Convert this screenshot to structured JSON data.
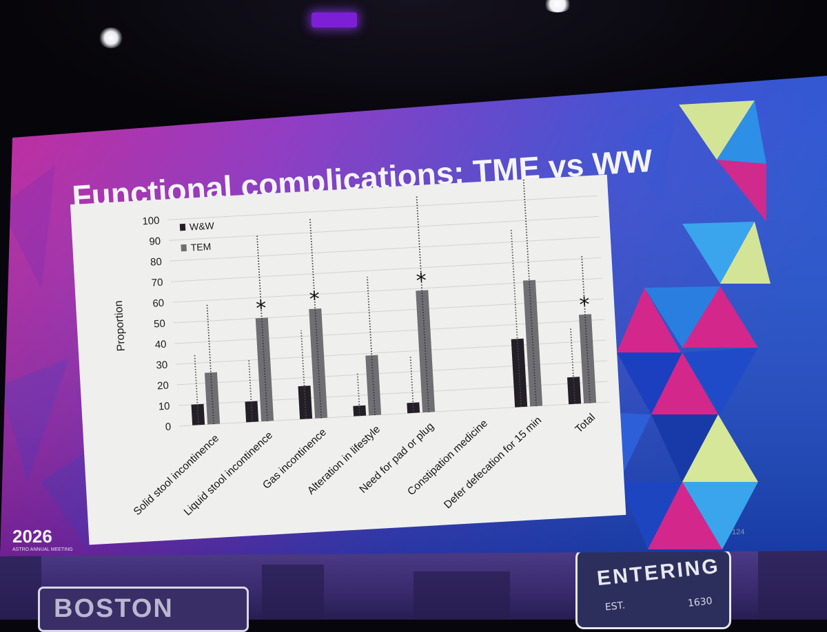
{
  "slide": {
    "title": "Functional complications: TME vs WW",
    "page_number": "124",
    "logo_year": "2026",
    "logo_subtitle": "ASTRO ANNUAL MEETING"
  },
  "venue": {
    "sign_left": "BOSTON",
    "sign_right": "ENTERING",
    "sign_right_est": "EST.",
    "sign_right_year": "1630"
  },
  "colors": {
    "ww_bar": "#231f26",
    "tem_bar": "#6f6f73",
    "plot_bg": "#efefed",
    "slide_magenta": "#d3268f",
    "slide_blue": "#2447c8"
  },
  "chart_data": {
    "type": "bar",
    "ylabel": "Proportion",
    "ylim": [
      0,
      100
    ],
    "yticks": [
      "0",
      "10",
      "20",
      "30",
      "40",
      "50",
      "60",
      "70",
      "80",
      "90",
      "100"
    ],
    "grid": true,
    "legend_position": "top-left",
    "categories": [
      "Solid stool incontinence",
      "Liquid stool incontinence",
      "Gas incontinence",
      "Alteration in lifestyle",
      "Need for pad or plug",
      "Constipation medicine",
      "Defer defecation for 15 min",
      "Total"
    ],
    "series": [
      {
        "name": "W&W",
        "values": [
          10,
          10,
          16,
          5,
          5,
          0,
          33,
          13
        ],
        "error_upper": [
          34,
          30,
          43,
          21,
          28,
          0,
          86,
          37
        ]
      },
      {
        "name": "TEM",
        "values": [
          25,
          50,
          53,
          29,
          59,
          0,
          61,
          43
        ],
        "error_upper": [
          58,
          90,
          97,
          67,
          105,
          0,
          110,
          72
        ]
      }
    ],
    "significant": [
      false,
      true,
      true,
      false,
      true,
      false,
      false,
      true
    ],
    "significance_marker": "*"
  }
}
